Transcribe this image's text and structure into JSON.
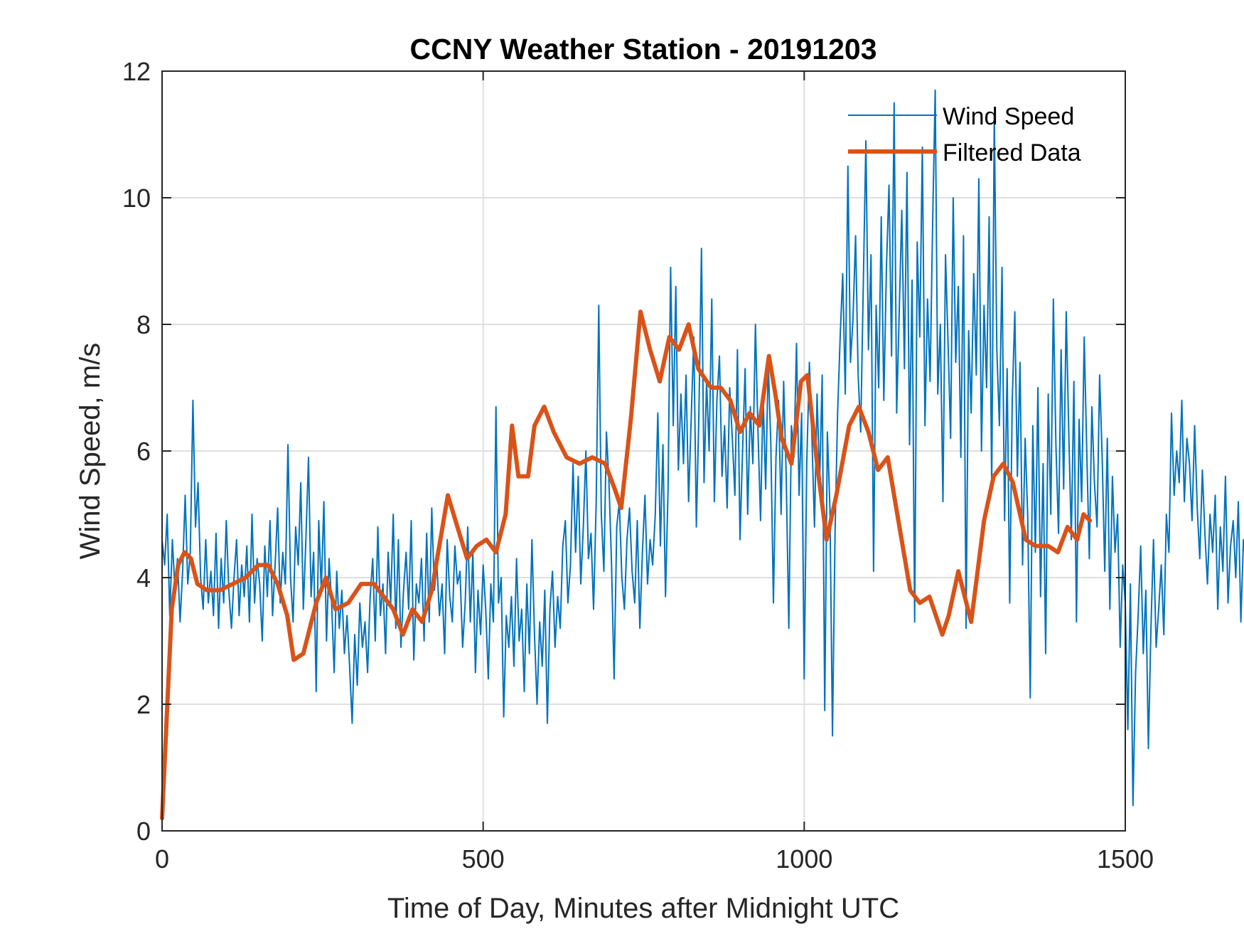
{
  "chart_data": {
    "type": "line",
    "title": "CCNY Weather Station - 20191203",
    "xlabel": "Time of Day, Minutes after Midnight UTC",
    "ylabel": "Wind Speed, m/s",
    "xlim": [
      0,
      1500
    ],
    "ylim": [
      0,
      12
    ],
    "xticks": [
      0,
      500,
      1000,
      1500
    ],
    "yticks": [
      0,
      2,
      4,
      6,
      8,
      10,
      12
    ],
    "xtick_labels": [
      "0",
      "500",
      "1000",
      "1500"
    ],
    "ytick_labels": [
      "0",
      "2",
      "4",
      "6",
      "8",
      "10",
      "12"
    ],
    "grid": true,
    "legend_position": "top-right",
    "series": [
      {
        "name": "Wind Speed",
        "color": "#0072BD",
        "style": "thin",
        "x_start": 0,
        "x_step": 4,
        "values": [
          4.6,
          4.2,
          5.0,
          3.4,
          4.6,
          3.8,
          4.3,
          3.3,
          4.1,
          5.3,
          3.9,
          4.4,
          6.8,
          4.8,
          5.5,
          4.0,
          3.5,
          4.6,
          3.6,
          4.1,
          3.4,
          4.7,
          3.2,
          4.3,
          3.6,
          4.9,
          3.8,
          3.2,
          4.0,
          4.6,
          3.4,
          4.2,
          3.7,
          4.5,
          3.3,
          5.0,
          3.6,
          4.3,
          3.9,
          3.0,
          4.5,
          3.7,
          4.9,
          3.4,
          4.2,
          5.1,
          3.6,
          4.4,
          3.9,
          6.1,
          4.0,
          3.3,
          4.8,
          4.2,
          5.5,
          3.5,
          4.6,
          5.9,
          3.7,
          4.4,
          2.2,
          4.9,
          3.8,
          5.2,
          3.0,
          4.3,
          3.6,
          2.5,
          4.1,
          3.2,
          3.8,
          2.8,
          3.4,
          2.6,
          1.7,
          3.1,
          2.3,
          3.6,
          2.9,
          3.3,
          2.5,
          3.7,
          4.3,
          3.0,
          4.8,
          3.4,
          3.9,
          2.8,
          4.4,
          3.6,
          5.0,
          3.2,
          4.6,
          2.9,
          3.8,
          4.4,
          3.5,
          4.9,
          2.7,
          3.9,
          3.6,
          4.3,
          3.0,
          4.7,
          3.3,
          5.1,
          3.8,
          4.2,
          3.4,
          3.9,
          2.8,
          4.6,
          3.7,
          3.3,
          4.5,
          3.9,
          4.1,
          2.9,
          3.6,
          4.8,
          3.3,
          4.4,
          2.5,
          3.8,
          3.1,
          4.2,
          3.5,
          2.4,
          3.9,
          3.3,
          6.7,
          3.6,
          4.0,
          1.8,
          3.4,
          2.9,
          3.7,
          2.6,
          4.3,
          3.0,
          3.5,
          2.2,
          3.9,
          2.8,
          4.6,
          3.1,
          2.0,
          3.3,
          2.6,
          3.8,
          1.7,
          3.5,
          4.1,
          2.9,
          3.7,
          3.2,
          4.5,
          4.9,
          3.6,
          4.2,
          5.8,
          4.4,
          5.6,
          3.9,
          4.8,
          6.0,
          4.3,
          4.7,
          3.5,
          5.2,
          8.3,
          5.0,
          4.1,
          6.3,
          5.5,
          4.2,
          2.4,
          4.8,
          5.2,
          4.0,
          3.5,
          4.6,
          5.1,
          4.1,
          3.6,
          4.9,
          3.2,
          4.4,
          5.3,
          3.9,
          4.6,
          4.2,
          5.0,
          6.6,
          4.5,
          6.1,
          3.7,
          5.4,
          8.9,
          6.4,
          8.6,
          5.7,
          6.9,
          5.8,
          7.2,
          5.2,
          6.5,
          7.8,
          4.8,
          6.6,
          9.2,
          5.5,
          7.1,
          6.0,
          8.4,
          5.2,
          6.8,
          7.5,
          5.6,
          6.4,
          5.1,
          7.0,
          6.2,
          5.3,
          7.6,
          4.6,
          6.0,
          7.3,
          5.0,
          6.7,
          5.8,
          8.0,
          6.3,
          4.9,
          6.9,
          5.4,
          7.4,
          6.1,
          3.6,
          5.9,
          6.8,
          5.0,
          7.1,
          5.6,
          3.2,
          6.4,
          5.9,
          7.7,
          5.3,
          6.6,
          2.4,
          5.8,
          7.4,
          6.2,
          4.8,
          6.9,
          5.5,
          7.2,
          1.9,
          6.3,
          5.1,
          1.5,
          4.7,
          6.6,
          7.8,
          8.8,
          6.9,
          10.5,
          7.4,
          8.1,
          9.4,
          7.2,
          6.3,
          8.6,
          10.9,
          7.6,
          9.1,
          4.1,
          8.3,
          7.0,
          9.7,
          6.8,
          8.9,
          10.2,
          7.5,
          11.5,
          6.6,
          8.2,
          9.8,
          7.3,
          10.4,
          6.1,
          8.7,
          3.3,
          9.3,
          7.8,
          10.8,
          6.4,
          8.4,
          7.1,
          9.6,
          11.7,
          6.9,
          8.0,
          5.2,
          9.1,
          7.7,
          6.2,
          10.0,
          7.4,
          8.6,
          5.9,
          9.4,
          3.2,
          7.9,
          6.6,
          8.8,
          7.2,
          10.3,
          6.0,
          8.3,
          7.0,
          9.7,
          5.4,
          11.3,
          7.6,
          6.4,
          8.9,
          4.9,
          7.3,
          3.6,
          6.8,
          8.2,
          5.6,
          7.4,
          4.2,
          6.2,
          5.0,
          2.1,
          6.4,
          4.4,
          7.0,
          3.7,
          5.8,
          2.8,
          6.9,
          5.0,
          8.4,
          6.1,
          4.7,
          7.6,
          5.4,
          8.2,
          6.3,
          4.6,
          7.1,
          3.3,
          6.5,
          5.2,
          7.8,
          6.0,
          4.3,
          6.7,
          5.5,
          4.8,
          7.2,
          5.9,
          4.1,
          6.2,
          3.5,
          5.6,
          4.4,
          5.0,
          2.9,
          4.2,
          3.6,
          1.6,
          3.9,
          0.4,
          2.5,
          3.4,
          4.5,
          2.8,
          3.8,
          1.3,
          3.2,
          4.6,
          2.9,
          3.5,
          4.2,
          3.1,
          5.0,
          4.4,
          6.6,
          5.3,
          6.0,
          5.5,
          6.8,
          5.2,
          6.2,
          5.8,
          4.9,
          6.4,
          5.1,
          4.3,
          5.7,
          4.7,
          3.9,
          5.0,
          4.4,
          5.3,
          3.5,
          4.8,
          4.1,
          5.6,
          3.6,
          4.5,
          4.9,
          4.0,
          5.2,
          3.3,
          4.6,
          4.2,
          5.0,
          2.7,
          4.7,
          4.4,
          5.3,
          3.9,
          4.8,
          5.4,
          6.6,
          4.5,
          5.2,
          3.0,
          4.8
        ]
      },
      {
        "name": "Filtered Data",
        "color": "#D95319",
        "style": "thick",
        "points": [
          [
            0,
            0.2
          ],
          [
            15,
            3.5
          ],
          [
            25,
            4.2
          ],
          [
            35,
            4.4
          ],
          [
            45,
            4.3
          ],
          [
            55,
            3.9
          ],
          [
            70,
            3.8
          ],
          [
            90,
            3.8
          ],
          [
            110,
            3.9
          ],
          [
            130,
            4.0
          ],
          [
            150,
            4.2
          ],
          [
            165,
            4.2
          ],
          [
            180,
            3.9
          ],
          [
            195,
            3.4
          ],
          [
            205,
            2.7
          ],
          [
            220,
            2.8
          ],
          [
            240,
            3.6
          ],
          [
            255,
            4.0
          ],
          [
            270,
            3.5
          ],
          [
            290,
            3.6
          ],
          [
            310,
            3.9
          ],
          [
            330,
            3.9
          ],
          [
            345,
            3.7
          ],
          [
            360,
            3.5
          ],
          [
            375,
            3.1
          ],
          [
            390,
            3.5
          ],
          [
            405,
            3.3
          ],
          [
            420,
            3.8
          ],
          [
            435,
            4.7
          ],
          [
            445,
            5.3
          ],
          [
            460,
            4.8
          ],
          [
            475,
            4.3
          ],
          [
            490,
            4.5
          ],
          [
            505,
            4.6
          ],
          [
            520,
            4.4
          ],
          [
            535,
            5.0
          ],
          [
            545,
            6.4
          ],
          [
            555,
            5.6
          ],
          [
            570,
            5.6
          ],
          [
            580,
            6.4
          ],
          [
            595,
            6.7
          ],
          [
            610,
            6.3
          ],
          [
            630,
            5.9
          ],
          [
            650,
            5.8
          ],
          [
            670,
            5.9
          ],
          [
            690,
            5.8
          ],
          [
            705,
            5.4
          ],
          [
            715,
            5.1
          ],
          [
            730,
            6.5
          ],
          [
            745,
            8.2
          ],
          [
            760,
            7.6
          ],
          [
            775,
            7.1
          ],
          [
            790,
            7.8
          ],
          [
            805,
            7.6
          ],
          [
            820,
            8.0
          ],
          [
            835,
            7.3
          ],
          [
            855,
            7.0
          ],
          [
            870,
            7.0
          ],
          [
            885,
            6.8
          ],
          [
            900,
            6.3
          ],
          [
            915,
            6.6
          ],
          [
            930,
            6.4
          ],
          [
            945,
            7.5
          ],
          [
            955,
            6.9
          ],
          [
            965,
            6.2
          ],
          [
            980,
            5.8
          ],
          [
            995,
            7.1
          ],
          [
            1005,
            7.2
          ],
          [
            1020,
            5.8
          ],
          [
            1035,
            4.6
          ],
          [
            1050,
            5.3
          ],
          [
            1070,
            6.4
          ],
          [
            1085,
            6.7
          ],
          [
            1100,
            6.3
          ],
          [
            1115,
            5.7
          ],
          [
            1130,
            5.9
          ],
          [
            1145,
            5.0
          ],
          [
            1165,
            3.8
          ],
          [
            1180,
            3.6
          ],
          [
            1195,
            3.7
          ],
          [
            1215,
            3.1
          ],
          [
            1225,
            3.4
          ],
          [
            1240,
            4.1
          ],
          [
            1260,
            3.3
          ],
          [
            1280,
            4.9
          ],
          [
            1295,
            5.6
          ],
          [
            1310,
            5.8
          ],
          [
            1325,
            5.5
          ],
          [
            1345,
            4.6
          ],
          [
            1360,
            4.5
          ],
          [
            1380,
            4.5
          ],
          [
            1395,
            4.4
          ],
          [
            1410,
            4.8
          ],
          [
            1425,
            4.6
          ],
          [
            1435,
            5.0
          ],
          [
            1445,
            4.9
          ]
        ]
      }
    ]
  }
}
